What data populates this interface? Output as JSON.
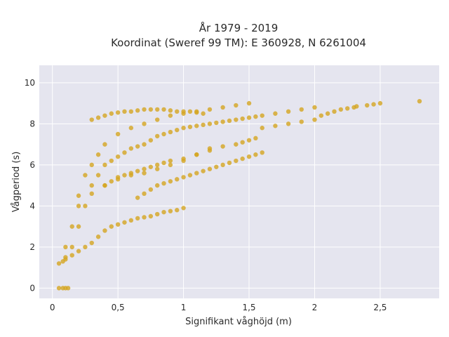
{
  "chart_data": {
    "type": "scatter",
    "title_line1": "År 1979 - 2019",
    "title_line2": "Koordinat (Sweref 99 TM): E 360928, N 6261004",
    "xlabel": "Signifikant våghöjd (m)",
    "ylabel": "Vågperiod (s)",
    "xlim": [
      -0.1,
      2.95
    ],
    "ylim": [
      -0.5,
      10.85
    ],
    "x_ticks": [
      0,
      0.5,
      1,
      1.5,
      2,
      2.5
    ],
    "x_tick_labels": [
      "0",
      "0,5",
      "1",
      "1,5",
      "2",
      "2,5"
    ],
    "y_ticks": [
      0,
      2,
      4,
      6,
      8,
      10
    ],
    "y_tick_labels": [
      "0",
      "2",
      "4",
      "6",
      "8",
      "10"
    ],
    "grid": true,
    "marker_color": "#d4a520",
    "plot_background": "#e5e5ef",
    "x": [
      0.05,
      0.08,
      0.1,
      0.12,
      0.05,
      0.08,
      0.1,
      0.15,
      0.2,
      0.25,
      0.3,
      0.35,
      0.4,
      0.45,
      0.5,
      0.55,
      0.6,
      0.65,
      0.7,
      0.75,
      0.8,
      0.85,
      0.9,
      0.95,
      1.0,
      0.1,
      0.15,
      0.2,
      0.25,
      0.3,
      0.35,
      0.4,
      0.5,
      0.6,
      0.7,
      0.8,
      0.9,
      1.0,
      1.1,
      1.2,
      1.3,
      1.4,
      1.5,
      1.6,
      1.7,
      1.8,
      1.9,
      2.0,
      2.05,
      2.1,
      2.15,
      2.2,
      2.25,
      2.3,
      2.32,
      2.4,
      2.45,
      2.5,
      2.8,
      0.2,
      0.3,
      0.4,
      0.5,
      0.6,
      0.7,
      0.8,
      0.9,
      1.0,
      1.1,
      1.2,
      0.1,
      0.15,
      0.2,
      0.25,
      0.3,
      0.35,
      0.4,
      0.45,
      0.5,
      0.55,
      0.6,
      0.65,
      0.7,
      0.75,
      0.8,
      0.85,
      0.9,
      0.95,
      1.0,
      1.05,
      1.1,
      1.15,
      1.2,
      1.25,
      1.3,
      1.35,
      1.4,
      1.45,
      1.5,
      1.55,
      1.6,
      1.7,
      1.8,
      1.9,
      2.0,
      0.3,
      0.35,
      0.4,
      0.45,
      0.5,
      0.55,
      0.6,
      0.65,
      0.7,
      0.75,
      0.8,
      0.85,
      0.9,
      0.95,
      1.0,
      1.05,
      1.1,
      1.15,
      0.4,
      0.45,
      0.5,
      0.55,
      0.6,
      0.65,
      0.7,
      0.75,
      0.8,
      0.85,
      0.9,
      1.0,
      1.1,
      1.2,
      1.3,
      1.4,
      1.45,
      1.5,
      1.55,
      0.65,
      0.7,
      0.75,
      0.8,
      0.85,
      0.9,
      0.95,
      1.0,
      1.05,
      1.1,
      1.15,
      1.2,
      1.25,
      1.3,
      1.35,
      1.4,
      1.45,
      1.5,
      1.55,
      1.6
    ],
    "y": [
      0,
      0,
      0,
      0,
      1.2,
      1.3,
      1.4,
      1.6,
      1.8,
      2.0,
      2.2,
      2.5,
      2.8,
      3.0,
      3.1,
      3.2,
      3.3,
      3.4,
      3.45,
      3.5,
      3.6,
      3.7,
      3.75,
      3.8,
      3.9,
      2.0,
      3.0,
      4.5,
      5.5,
      6.0,
      6.5,
      7.0,
      7.5,
      7.8,
      8.0,
      8.2,
      8.4,
      8.5,
      8.6,
      8.7,
      8.8,
      8.9,
      9.0,
      7.8,
      7.9,
      8.0,
      8.1,
      8.2,
      8.4,
      8.5,
      8.6,
      8.7,
      8.75,
      8.8,
      8.85,
      8.9,
      8.95,
      9.0,
      9.1,
      4.0,
      4.6,
      5.0,
      5.3,
      5.5,
      5.6,
      5.8,
      6.0,
      6.2,
      6.5,
      6.8,
      1.5,
      2.0,
      3.0,
      4.0,
      5.0,
      5.5,
      6.0,
      6.2,
      6.4,
      6.6,
      6.8,
      6.9,
      7.0,
      7.2,
      7.4,
      7.5,
      7.6,
      7.7,
      7.8,
      7.85,
      7.9,
      7.95,
      8.0,
      8.05,
      8.1,
      8.15,
      8.2,
      8.25,
      8.3,
      8.35,
      8.4,
      8.5,
      8.6,
      8.7,
      8.8,
      8.2,
      8.3,
      8.4,
      8.5,
      8.55,
      8.6,
      8.6,
      8.65,
      8.7,
      8.7,
      8.7,
      8.7,
      8.65,
      8.6,
      8.6,
      8.6,
      8.55,
      8.5,
      5.0,
      5.2,
      5.4,
      5.5,
      5.6,
      5.7,
      5.8,
      5.9,
      6.0,
      6.1,
      6.2,
      6.3,
      6.5,
      6.7,
      6.9,
      7.0,
      7.1,
      7.2,
      7.3,
      4.4,
      4.6,
      4.8,
      5.0,
      5.1,
      5.2,
      5.3,
      5.4,
      5.5,
      5.6,
      5.7,
      5.8,
      5.9,
      6.0,
      6.1,
      6.2,
      6.3,
      6.4,
      6.5,
      6.6
    ]
  }
}
